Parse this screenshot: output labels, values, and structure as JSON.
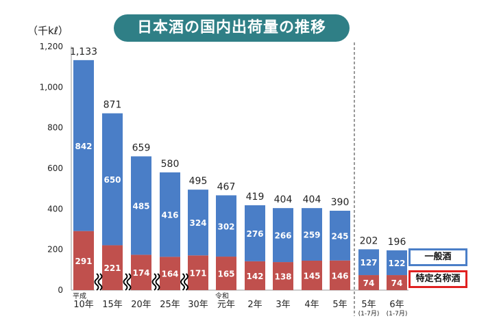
{
  "header": {
    "title": "日本酒の国内出荷量の推移",
    "unit": "（千kℓ）"
  },
  "legend": {
    "general_label": "一般酒",
    "special_label": "特定名称酒"
  },
  "colors": {
    "general": "#4a7ec7",
    "special": "#c0504d",
    "title_bg": "#2f7f86",
    "legend_special_border": "#e02020"
  },
  "chart_data": {
    "type": "bar",
    "stacked": true,
    "categories": [
      {
        "top": "平成",
        "bottom": "10年"
      },
      {
        "top": "",
        "bottom": "15年"
      },
      {
        "top": "",
        "bottom": "20年"
      },
      {
        "top": "",
        "bottom": "25年"
      },
      {
        "top": "",
        "bottom": "30年"
      },
      {
        "top": "令和",
        "bottom": "元年"
      },
      {
        "top": "",
        "bottom": "2年"
      },
      {
        "top": "",
        "bottom": "3年"
      },
      {
        "top": "",
        "bottom": "4年"
      },
      {
        "top": "",
        "bottom": "5年"
      },
      {
        "top": "",
        "bottom": "5年",
        "sub": "(1-7月)"
      },
      {
        "top": "",
        "bottom": "6年",
        "sub": "(1-7月)"
      }
    ],
    "series": [
      {
        "name": "特定名称酒",
        "values": [
          291,
          221,
          174,
          164,
          171,
          165,
          142,
          138,
          145,
          146,
          74,
          74
        ]
      },
      {
        "name": "一般酒",
        "values": [
          842,
          650,
          485,
          416,
          324,
          302,
          276,
          266,
          259,
          245,
          127,
          122
        ]
      }
    ],
    "totals": [
      "1,133",
      "871",
      "659",
      "580",
      "495",
      "467",
      "419",
      "404",
      "404",
      "390",
      "202",
      "196"
    ],
    "yticks": [
      "0",
      "200",
      "400",
      "600",
      "800",
      "1,000",
      "1,200"
    ],
    "ylim": [
      0,
      1200
    ],
    "axis_breaks_after": [
      0,
      1,
      2,
      3
    ],
    "partial_year_divider_before": 10,
    "legend_position": "right"
  }
}
